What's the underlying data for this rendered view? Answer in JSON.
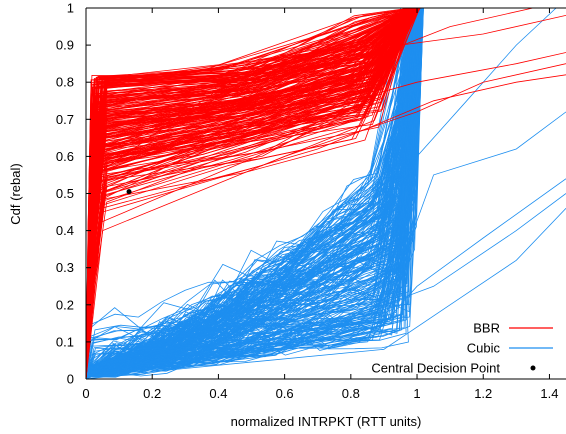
{
  "chart_data": {
    "type": "line",
    "xlabel": "normalized INTRPKT (RTT units)",
    "ylabel": "Cdf (rebal)",
    "xlim": [
      0,
      1.45
    ],
    "ylim": [
      0,
      1
    ],
    "x_ticks": [
      "0",
      "0.2",
      "0.4",
      "0.6",
      "0.8",
      "1",
      "1.2",
      "1.4"
    ],
    "y_ticks": [
      "0",
      "0.1",
      "0.2",
      "0.3",
      "0.4",
      "0.5",
      "0.6",
      "0.7",
      "0.8",
      "0.9",
      "1"
    ],
    "grid": false,
    "legend_position": "bottom-right",
    "colors": {
      "bbr": "#ff0000",
      "cubic": "#1e8ff0",
      "point": "#000000"
    },
    "legend": [
      {
        "label": "BBR",
        "style": "line",
        "color": "#ff0000"
      },
      {
        "label": "Cubic",
        "style": "line",
        "color": "#1e8ff0"
      },
      {
        "label": "Central Decision Point",
        "style": "point",
        "color": "#000000"
      }
    ],
    "central_decision_point": {
      "x": 0.13,
      "y": 0.505
    },
    "series": [
      {
        "name": "BBR",
        "color": "#ff0000",
        "lines": 260,
        "typical_knee": {
          "x": 0.05,
          "y": 0.75
        }
      },
      {
        "name": "Cubic",
        "color": "#1e8ff0",
        "lines": 260,
        "typical_knee": {
          "x": 0.95,
          "y": 0.65
        }
      }
    ]
  }
}
